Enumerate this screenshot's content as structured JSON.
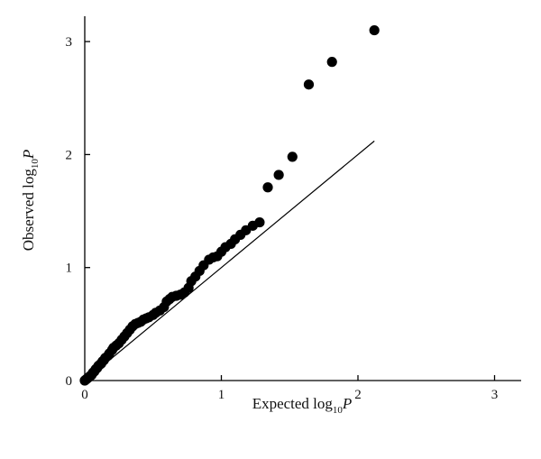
{
  "chart_data": {
    "type": "scatter",
    "title": "",
    "xlabel": {
      "prefix": "Expected log",
      "subscript": "10",
      "italic": "P"
    },
    "ylabel": {
      "prefix": "Observed log",
      "subscript": "10",
      "italic": "P"
    },
    "xlim": [
      0,
      3.2
    ],
    "ylim": [
      0,
      3.3
    ],
    "xticks": [
      0,
      1,
      2,
      3
    ],
    "yticks": [
      0,
      1,
      2,
      3
    ],
    "xtick_labels": [
      "0",
      "1",
      "2",
      "3"
    ],
    "ytick_labels": [
      "0",
      "1",
      "2",
      "3"
    ],
    "grid": false,
    "legend": "none",
    "reference_line": {
      "x": [
        0,
        2.12
      ],
      "y": [
        0,
        2.12
      ]
    },
    "marker_color": "#000000",
    "line_color": "#000000",
    "series": [
      {
        "points": [
          [
            0.0,
            0.0
          ],
          [
            0.01,
            0.01
          ],
          [
            0.02,
            0.02
          ],
          [
            0.03,
            0.03
          ],
          [
            0.04,
            0.04
          ],
          [
            0.05,
            0.05
          ],
          [
            0.06,
            0.07
          ],
          [
            0.07,
            0.08
          ],
          [
            0.08,
            0.1
          ],
          [
            0.09,
            0.11
          ],
          [
            0.1,
            0.13
          ],
          [
            0.11,
            0.14
          ],
          [
            0.12,
            0.15
          ],
          [
            0.13,
            0.17
          ],
          [
            0.14,
            0.18
          ],
          [
            0.15,
            0.2
          ],
          [
            0.17,
            0.22
          ],
          [
            0.18,
            0.24
          ],
          [
            0.2,
            0.27
          ],
          [
            0.21,
            0.29
          ],
          [
            0.23,
            0.31
          ],
          [
            0.25,
            0.33
          ],
          [
            0.27,
            0.36
          ],
          [
            0.29,
            0.39
          ],
          [
            0.31,
            0.42
          ],
          [
            0.33,
            0.45
          ],
          [
            0.35,
            0.48
          ],
          [
            0.37,
            0.5
          ],
          [
            0.39,
            0.51
          ],
          [
            0.41,
            0.52
          ],
          [
            0.43,
            0.54
          ],
          [
            0.45,
            0.55
          ],
          [
            0.47,
            0.56
          ],
          [
            0.5,
            0.58
          ],
          [
            0.52,
            0.6
          ],
          [
            0.55,
            0.62
          ],
          [
            0.58,
            0.65
          ],
          [
            0.6,
            0.7
          ],
          [
            0.62,
            0.72
          ],
          [
            0.64,
            0.74
          ],
          [
            0.67,
            0.75
          ],
          [
            0.7,
            0.76
          ],
          [
            0.73,
            0.78
          ],
          [
            0.76,
            0.82
          ],
          [
            0.78,
            0.88
          ],
          [
            0.81,
            0.92
          ],
          [
            0.84,
            0.97
          ],
          [
            0.87,
            1.02
          ],
          [
            0.91,
            1.07
          ],
          [
            0.94,
            1.09
          ],
          [
            0.97,
            1.1
          ],
          [
            1.0,
            1.14
          ],
          [
            1.03,
            1.18
          ],
          [
            1.07,
            1.21
          ],
          [
            1.1,
            1.25
          ],
          [
            1.14,
            1.29
          ],
          [
            1.18,
            1.33
          ],
          [
            1.23,
            1.37
          ],
          [
            1.28,
            1.4
          ],
          [
            1.34,
            1.71
          ],
          [
            1.42,
            1.82
          ],
          [
            1.52,
            1.98
          ],
          [
            1.64,
            2.62
          ],
          [
            1.81,
            2.82
          ],
          [
            2.12,
            3.1
          ]
        ]
      }
    ]
  }
}
